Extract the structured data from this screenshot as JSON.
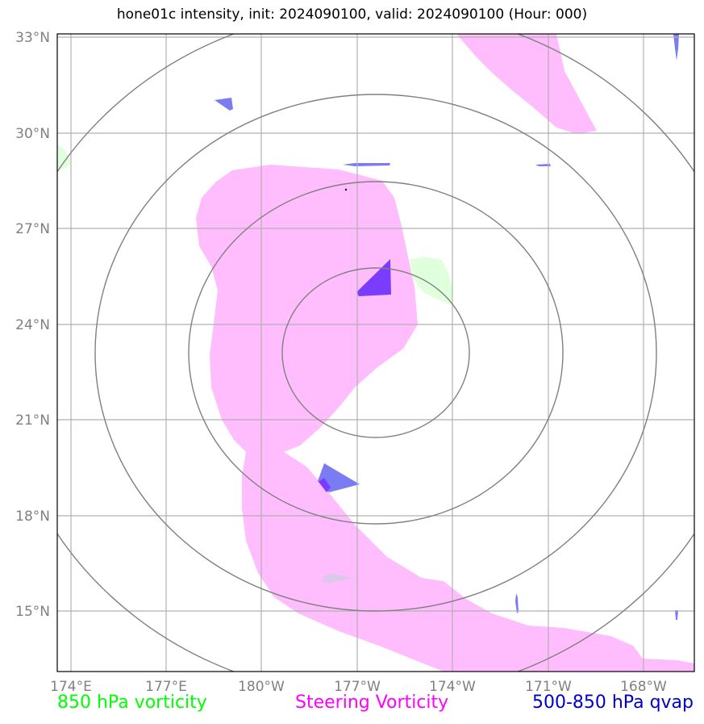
{
  "title": "hone01c intensity, init: 2024090100, valid: 2024090100 (Hour: 000)",
  "lat_labels": [
    "33°N",
    "30°N",
    "27°N",
    "24°N",
    "21°N",
    "18°N",
    "15°N"
  ],
  "lon_labels": [
    "174°E",
    "177°E",
    "180°W",
    "177°W",
    "174°W",
    "171°W",
    "168°W"
  ],
  "legend": {
    "left": {
      "text": "850 hPa vorticity",
      "color": "#00ff00"
    },
    "middle": {
      "text": "Steering Vorticity",
      "color": "#ff00ff"
    },
    "right": {
      "text": "500-850 hPa qvap",
      "color": "#0000cc"
    }
  },
  "colors": {
    "steering_fill": "#ffbdfd",
    "vort850_fill": "#e0ffdc",
    "qvap_fill": "#7b7bf4",
    "qvap_dark": "#7a3cff",
    "range_rings": "#808080",
    "grid": "#b0b0b0"
  },
  "map_extent": {
    "lon_min": 173.6,
    "lon_max": 193.6,
    "lat_min": 13.0,
    "lat_max": 33.1
  },
  "storm_center": {
    "lon": 183.0,
    "lat": 23.9
  },
  "range_rings": [
    {
      "lat": 25.7,
      "lon": 183.0
    },
    {
      "lat": 28.5,
      "lon": 183.0
    },
    {
      "lat": 31.3,
      "lon": 183.0
    },
    {
      "lat": 34.1,
      "lon": 183.0
    }
  ]
}
